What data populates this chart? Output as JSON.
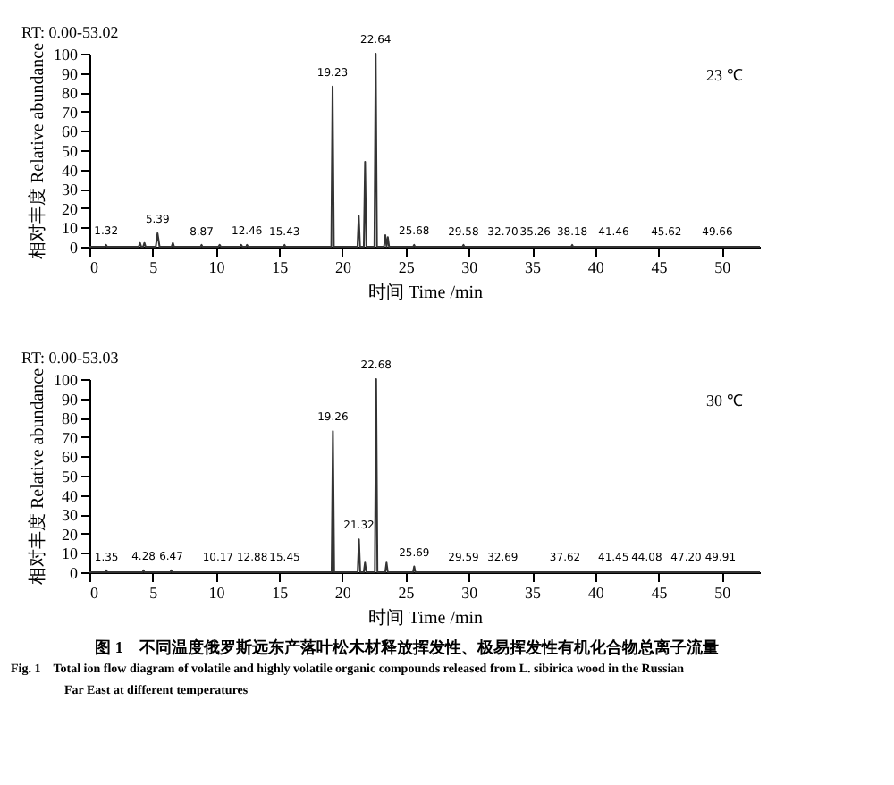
{
  "chart_data": [
    {
      "type": "line",
      "xlabel": "时间 Time /min",
      "ylabel": "相对丰度 Relative abundance",
      "x": [
        0,
        1.25,
        1.32,
        1.4,
        3.9,
        4.0,
        4.1,
        4.25,
        4.35,
        4.45,
        5.25,
        5.39,
        5.55,
        6.5,
        6.6,
        6.7,
        8.8,
        8.87,
        8.95,
        10.2,
        10.3,
        10.4,
        11.9,
        12.0,
        12.1,
        12.4,
        12.46,
        12.55,
        15.35,
        15.43,
        15.5,
        19.13,
        19.23,
        19.33,
        21.2,
        21.3,
        21.4,
        21.7,
        21.8,
        21.9,
        22.54,
        22.64,
        22.74,
        23.3,
        23.4,
        23.5,
        23.6,
        23.7,
        25.6,
        25.68,
        25.75,
        29.5,
        29.58,
        29.65,
        38.1,
        38.18,
        38.25,
        53.02
      ],
      "series": [
        {
          "color": "#333333",
          "values": [
            0,
            0,
            1,
            0,
            0,
            2,
            0,
            0,
            2,
            0,
            0,
            7,
            0,
            0,
            2,
            0,
            0,
            1,
            0,
            0,
            1,
            0,
            0,
            1,
            0,
            0,
            1,
            0,
            0,
            1,
            0,
            0,
            83,
            0,
            0,
            16,
            0,
            0,
            44,
            0,
            0,
            100,
            0,
            0,
            6,
            0,
            5,
            0,
            0,
            1,
            0,
            0,
            1,
            0,
            0,
            1,
            0,
            0
          ]
        }
      ],
      "xlim": [
        0,
        53.02
      ],
      "xticks": [
        0,
        5,
        10,
        15,
        20,
        25,
        30,
        35,
        40,
        45,
        50
      ],
      "ylim": [
        0,
        100
      ],
      "yticks": [
        0,
        10,
        20,
        30,
        40,
        50,
        60,
        70,
        80,
        90,
        100
      ],
      "grid": false,
      "annotations": [
        "RT: 0.00-53.02",
        "23 ℃",
        {
          "text": "1.32",
          "x": 1.32,
          "y": 1
        },
        {
          "text": "5.39",
          "x": 5.39,
          "y": 7
        },
        {
          "text": "8.87",
          "x": 8.87,
          "y": 0.5
        },
        {
          "text": "12.46",
          "x": 12.46,
          "y": 1
        },
        {
          "text": "15.43",
          "x": 15.43,
          "y": 0.5
        },
        {
          "text": "19.23",
          "x": 19.23,
          "y": 83
        },
        {
          "text": "22.64",
          "x": 22.64,
          "y": 100
        },
        {
          "text": "25.68",
          "x": 25.68,
          "y": 1
        },
        {
          "text": "29.58",
          "x": 29.58,
          "y": 0.5
        },
        {
          "text": "32.70",
          "x": 32.7,
          "y": 0.5
        },
        {
          "text": "35.26",
          "x": 35.26,
          "y": 0.5
        },
        {
          "text": "38.18",
          "x": 38.18,
          "y": 0.5
        },
        {
          "text": "41.46",
          "x": 41.46,
          "y": 0.5
        },
        {
          "text": "45.62",
          "x": 45.62,
          "y": 0.5
        },
        {
          "text": "49.66",
          "x": 49.66,
          "y": 0.5
        }
      ]
    },
    {
      "type": "line",
      "xlabel": "时间 Time /min",
      "ylabel": "相对丰度 Relative abundance",
      "x": [
        0,
        1.3,
        1.35,
        1.4,
        4.2,
        4.28,
        4.35,
        6.4,
        6.47,
        6.55,
        19.16,
        19.26,
        19.36,
        21.22,
        21.32,
        21.42,
        21.7,
        21.8,
        21.9,
        22.58,
        22.68,
        22.78,
        23.4,
        23.5,
        23.6,
        25.6,
        25.69,
        25.78,
        53.03
      ],
      "series": [
        {
          "color": "#333333",
          "values": [
            0,
            0,
            1,
            0,
            0,
            1,
            0,
            0,
            1,
            0,
            0,
            73,
            0,
            0,
            17,
            0,
            0,
            5,
            0,
            0,
            100,
            0,
            0,
            5,
            0,
            0,
            3,
            0,
            0
          ]
        }
      ],
      "xlim": [
        0,
        53.03
      ],
      "xticks": [
        0,
        5,
        10,
        15,
        20,
        25,
        30,
        35,
        40,
        45,
        50
      ],
      "ylim": [
        0,
        100
      ],
      "yticks": [
        0,
        10,
        20,
        30,
        40,
        50,
        60,
        70,
        80,
        90,
        100
      ],
      "grid": false,
      "annotations": [
        "RT: 0.00-53.03",
        "30 ℃",
        {
          "text": "1.35",
          "x": 1.35,
          "y": 0.5
        },
        {
          "text": "4.28",
          "x": 4.28,
          "y": 1
        },
        {
          "text": "6.47",
          "x": 6.47,
          "y": 1
        },
        {
          "text": "10.17",
          "x": 10.17,
          "y": 0.5
        },
        {
          "text": "12.88",
          "x": 12.88,
          "y": 0.5
        },
        {
          "text": "15.45",
          "x": 15.45,
          "y": 0.5
        },
        {
          "text": "19.26",
          "x": 19.26,
          "y": 73
        },
        {
          "text": "21.32",
          "x": 21.32,
          "y": 17
        },
        {
          "text": "22.68",
          "x": 22.68,
          "y": 100
        },
        {
          "text": "25.69",
          "x": 25.69,
          "y": 3
        },
        {
          "text": "29.59",
          "x": 29.59,
          "y": 0.5
        },
        {
          "text": "32.69",
          "x": 32.69,
          "y": 0.5
        },
        {
          "text": "37.62",
          "x": 37.62,
          "y": 0.5
        },
        {
          "text": "41.45",
          "x": 41.45,
          "y": 0.5
        },
        {
          "text": "44.08",
          "x": 44.08,
          "y": 0.5
        },
        {
          "text": "47.20",
          "x": 47.2,
          "y": 0.5
        },
        {
          "text": "49.91",
          "x": 49.91,
          "y": 0.5
        },
        "图 1　不同温度俄罗斯远东产落叶松木材释放挥发性、极易挥发性有机化合物总离子流量",
        "Fig. 1　Total ion flow diagram of volatile and highly volatile organic compounds released from L. sibirica wood in the Russian",
        "Far East at different temperatures"
      ]
    }
  ]
}
